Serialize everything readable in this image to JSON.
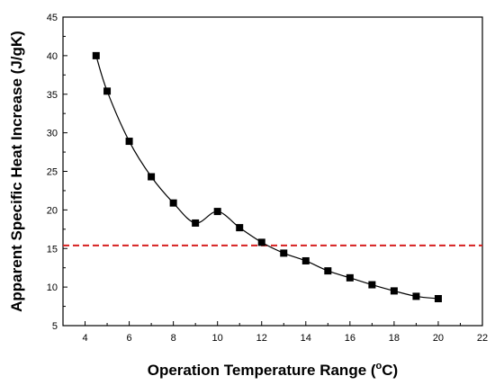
{
  "chart_data": {
    "type": "line",
    "title": "",
    "xlabel_main": "Operation Temperature Range (",
    "xlabel_sup": "o",
    "xlabel_end": "C)",
    "ylabel": "Apparent Specific Heat Increase (J/gK)",
    "xlim": [
      3,
      22
    ],
    "ylim": [
      5,
      45
    ],
    "xticks": [
      4,
      6,
      8,
      10,
      12,
      14,
      16,
      18,
      20,
      22
    ],
    "yticks": [
      5,
      10,
      15,
      20,
      25,
      30,
      35,
      40,
      45
    ],
    "grid": false,
    "legend": "none",
    "series": [
      {
        "marker": "square",
        "color": "#000000",
        "x": [
          4.5,
          5,
          6,
          7,
          8,
          9,
          10,
          11,
          12,
          13,
          14,
          15,
          16,
          17,
          18,
          19,
          20
        ],
        "y": [
          40.0,
          35.4,
          28.9,
          24.3,
          20.9,
          18.3,
          19.8,
          17.7,
          15.8,
          14.4,
          13.4,
          12.1,
          11.2,
          10.3,
          9.5,
          8.8,
          8.5
        ]
      }
    ],
    "reference_line": {
      "y": 15.4,
      "color": "#d62020",
      "style": "dashed"
    }
  }
}
